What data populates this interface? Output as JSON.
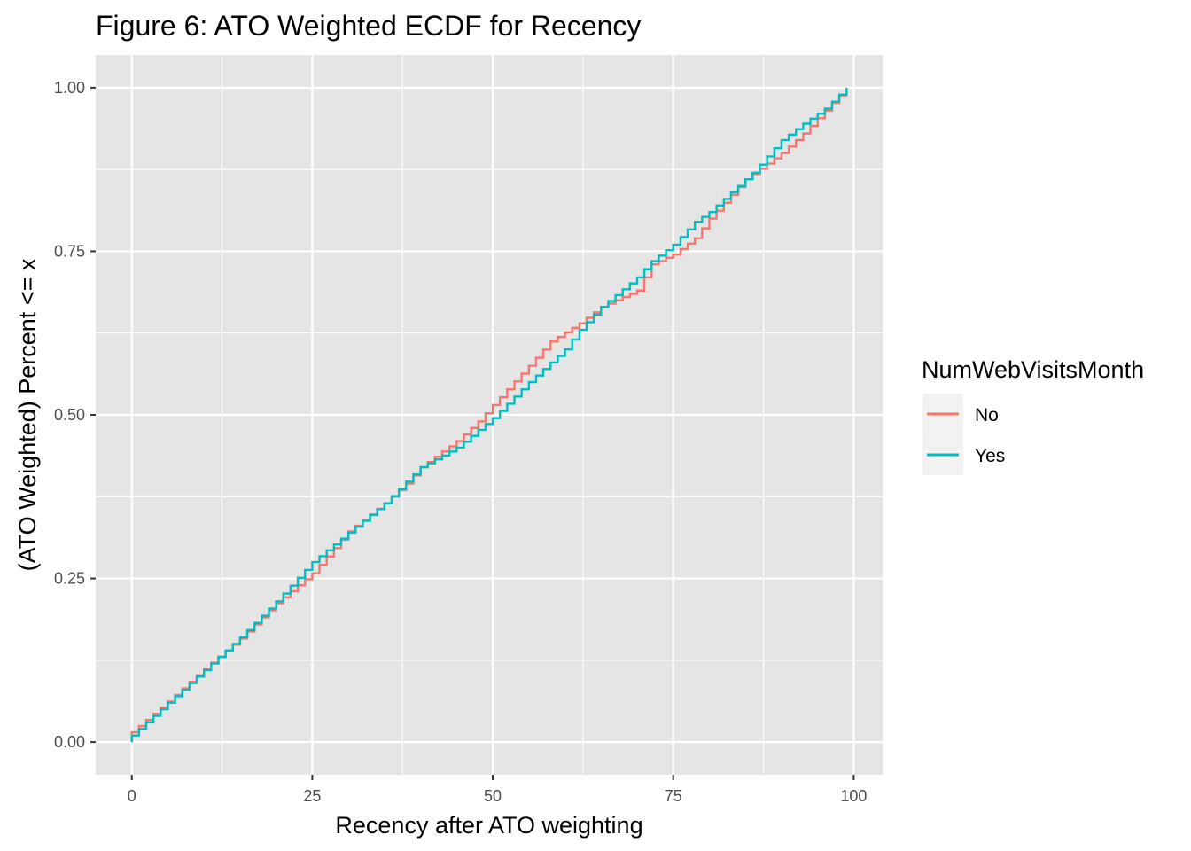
{
  "chart_data": {
    "type": "line",
    "step": true,
    "title": "Figure 6: ATO Weighted ECDF for Recency",
    "xlabel": "Recency after ATO weighting",
    "ylabel": "(ATO Weighted) Percent <= x",
    "xlim": [
      -5,
      104
    ],
    "ylim": [
      -0.05,
      1.05
    ],
    "x_ticks": [
      0,
      25,
      50,
      75,
      100
    ],
    "x_tick_labels": [
      "0",
      "25",
      "50",
      "75",
      "100"
    ],
    "y_ticks": [
      0,
      0.25,
      0.5,
      0.75,
      1
    ],
    "y_tick_labels": [
      "0.00",
      "0.25",
      "0.50",
      "0.75",
      "1.00"
    ],
    "grid": true,
    "background": "#e5e5e5",
    "legend": {
      "title": "NumWebVisitsMonth",
      "position": "right"
    },
    "series": [
      {
        "name": "No",
        "color": "#f8766d",
        "x": [
          0,
          5,
          10,
          15,
          20,
          25,
          30,
          35,
          38,
          40,
          45,
          48,
          50,
          55,
          58,
          62,
          65,
          70,
          72,
          75,
          78,
          80,
          85,
          90,
          93,
          96,
          99
        ],
        "y": [
          0.015,
          0.062,
          0.112,
          0.158,
          0.212,
          0.258,
          0.322,
          0.365,
          0.395,
          0.42,
          0.46,
          0.49,
          0.515,
          0.575,
          0.612,
          0.64,
          0.665,
          0.69,
          0.73,
          0.745,
          0.77,
          0.8,
          0.86,
          0.9,
          0.93,
          0.965,
          1.0
        ]
      },
      {
        "name": "Yes",
        "color": "#00bfc4",
        "x": [
          0,
          5,
          10,
          15,
          20,
          25,
          30,
          35,
          40,
          45,
          50,
          55,
          58,
          60,
          62,
          65,
          70,
          72,
          75,
          78,
          80,
          83,
          86,
          90,
          93,
          96,
          99
        ],
        "y": [
          0.01,
          0.06,
          0.11,
          0.16,
          0.215,
          0.275,
          0.32,
          0.365,
          0.42,
          0.45,
          0.495,
          0.55,
          0.58,
          0.6,
          0.63,
          0.665,
          0.71,
          0.735,
          0.76,
          0.795,
          0.81,
          0.84,
          0.87,
          0.92,
          0.945,
          0.968,
          1.0
        ]
      }
    ]
  }
}
